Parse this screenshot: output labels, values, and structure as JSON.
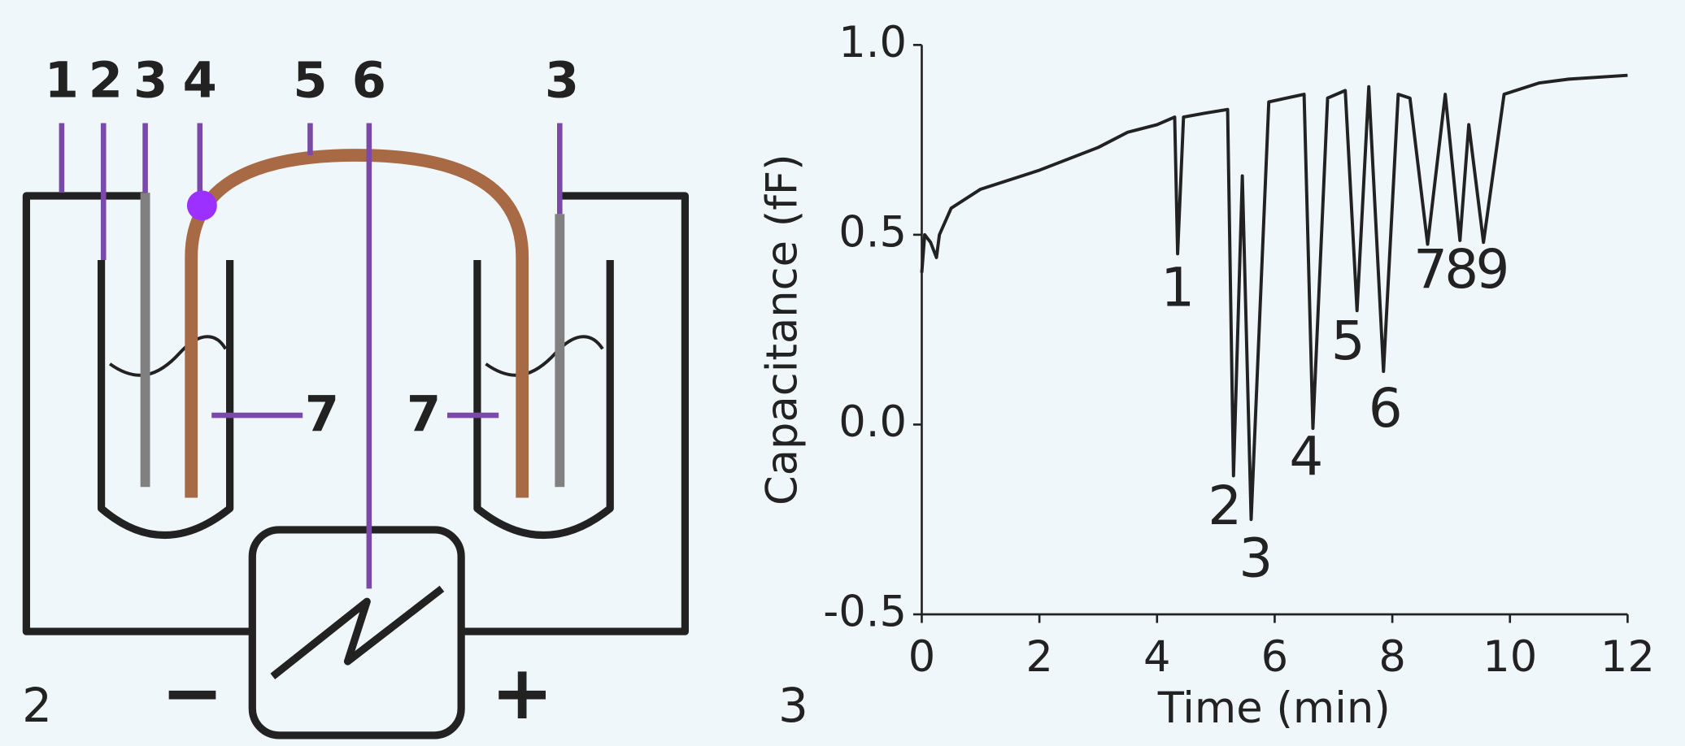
{
  "diagram": {
    "panel_label": "2",
    "top_labels": [
      "1",
      "2",
      "3",
      "4",
      "5",
      "6",
      "3"
    ],
    "side_labels": [
      "7",
      "7"
    ],
    "polarity": [
      "−",
      "+"
    ]
  },
  "chart_data": {
    "type": "line",
    "panel_label": "3",
    "x_label": "Time (min)",
    "y_label": "Capacitance (fF)",
    "xlim": [
      0,
      12
    ],
    "xticks": [
      0,
      2,
      4,
      6,
      8,
      10,
      12
    ],
    "ylim": [
      -0.5,
      1.0
    ],
    "yticks": [
      -0.5,
      {
        "value": 0,
        "label": "0.0"
      },
      0.5,
      {
        "value": 1,
        "label": "1.0"
      }
    ],
    "series": [
      {
        "color": "#222222",
        "x": [
          0,
          0.05,
          0.15,
          0.25,
          0.3,
          0.5,
          1,
          2,
          3,
          3.5,
          4,
          4.3,
          4.35,
          4.45,
          4.8,
          5.2,
          5.3,
          5.45,
          5.6,
          5.9,
          6.2,
          6.5,
          6.65,
          6.9,
          7.2,
          7.4,
          7.6,
          7.85,
          8.1,
          8.3,
          8.6,
          8.9,
          9.15,
          9.3,
          9.55,
          9.9,
          10.5,
          11,
          12
        ],
        "values": [
          0.4,
          0.5,
          0.48,
          0.44,
          0.5,
          0.57,
          0.62,
          0.67,
          0.73,
          0.77,
          0.79,
          0.81,
          0.45,
          0.81,
          0.82,
          0.83,
          -0.135,
          0.655,
          -0.25,
          0.85,
          0.86,
          0.87,
          -0.01,
          0.86,
          0.88,
          0.3,
          0.89,
          0.14,
          0.87,
          0.86,
          0.475,
          0.87,
          0.485,
          0.79,
          0.48,
          0.87,
          0.9,
          0.91,
          0.92
        ]
      }
    ],
    "annotations": [
      "1",
      "2",
      "3",
      "4",
      "5",
      "6",
      "7",
      "8",
      "9"
    ]
  }
}
